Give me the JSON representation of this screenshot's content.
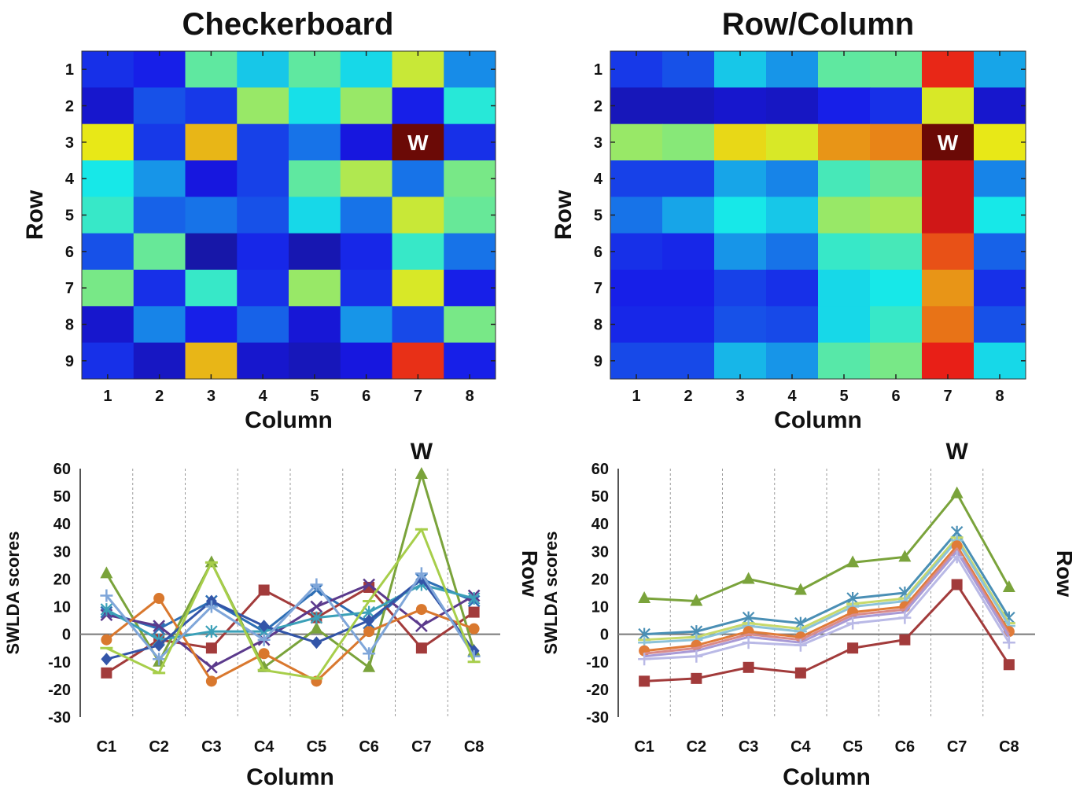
{
  "chart_data": [
    {
      "type": "heatmap",
      "title": "Checkerboard",
      "xlabel": "Column",
      "ylabel": "Row",
      "x_ticks": [
        "1",
        "2",
        "3",
        "4",
        "5",
        "6",
        "7",
        "8"
      ],
      "y_ticks": [
        "1",
        "2",
        "3",
        "4",
        "5",
        "6",
        "7",
        "8",
        "9"
      ],
      "target_label": "W",
      "target_cell": {
        "row": 3,
        "column": 7
      },
      "colormap": "jet",
      "value_range": [
        0,
        1
      ],
      "values": [
        [
          0.14,
          0.12,
          0.45,
          0.32,
          0.45,
          0.34,
          0.58,
          0.25
        ],
        [
          0.08,
          0.18,
          0.15,
          0.52,
          0.35,
          0.52,
          0.12,
          0.38
        ],
        [
          0.62,
          0.15,
          0.68,
          0.16,
          0.22,
          0.1,
          0.98,
          0.14
        ],
        [
          0.36,
          0.26,
          0.1,
          0.16,
          0.45,
          0.55,
          0.22,
          0.48
        ],
        [
          0.4,
          0.2,
          0.22,
          0.18,
          0.34,
          0.22,
          0.58,
          0.46
        ],
        [
          0.18,
          0.46,
          0.04,
          0.13,
          0.05,
          0.13,
          0.4,
          0.22
        ],
        [
          0.48,
          0.14,
          0.4,
          0.14,
          0.52,
          0.14,
          0.6,
          0.12
        ],
        [
          0.08,
          0.24,
          0.12,
          0.2,
          0.09,
          0.26,
          0.17,
          0.48
        ],
        [
          0.14,
          0.07,
          0.68,
          0.08,
          0.06,
          0.1,
          0.84,
          0.12
        ]
      ]
    },
    {
      "type": "heatmap",
      "title": "Row/Column",
      "xlabel": "Column",
      "ylabel": "Row",
      "x_ticks": [
        "1",
        "2",
        "3",
        "4",
        "5",
        "6",
        "7",
        "8"
      ],
      "y_ticks": [
        "1",
        "2",
        "3",
        "4",
        "5",
        "6",
        "7",
        "8",
        "9"
      ],
      "target_label": "W",
      "target_cell": {
        "row": 3,
        "column": 7
      },
      "colormap": "jet",
      "value_range": [
        0,
        1
      ],
      "values": [
        [
          0.15,
          0.18,
          0.32,
          0.26,
          0.45,
          0.46,
          0.85,
          0.28
        ],
        [
          0.06,
          0.06,
          0.08,
          0.07,
          0.12,
          0.14,
          0.6,
          0.08
        ],
        [
          0.52,
          0.5,
          0.64,
          0.6,
          0.72,
          0.74,
          0.98,
          0.62
        ],
        [
          0.16,
          0.16,
          0.28,
          0.24,
          0.42,
          0.46,
          0.9,
          0.24
        ],
        [
          0.22,
          0.28,
          0.36,
          0.32,
          0.52,
          0.54,
          0.9,
          0.36
        ],
        [
          0.14,
          0.13,
          0.26,
          0.22,
          0.4,
          0.42,
          0.8,
          0.2
        ],
        [
          0.12,
          0.12,
          0.16,
          0.14,
          0.34,
          0.36,
          0.72,
          0.14
        ],
        [
          0.13,
          0.13,
          0.18,
          0.17,
          0.34,
          0.4,
          0.76,
          0.18
        ],
        [
          0.17,
          0.17,
          0.3,
          0.26,
          0.44,
          0.48,
          0.86,
          0.34
        ]
      ]
    },
    {
      "type": "line",
      "top_label": "W",
      "xlabel": "Column",
      "ylabel": "SWLDA scores",
      "side_label": "Row",
      "categories": [
        "C1",
        "C2",
        "C3",
        "C4",
        "C5",
        "C6",
        "C7",
        "C8"
      ],
      "ylim": [
        -30,
        60
      ],
      "yticks": [
        -30,
        -20,
        -10,
        0,
        10,
        20,
        30,
        40,
        50,
        60
      ],
      "grid": "vertical dashed separators",
      "series": [
        {
          "color": "#2E6FB5",
          "marker": "x",
          "values": [
            8,
            2,
            12,
            1,
            16,
            4,
            20,
            12
          ]
        },
        {
          "color": "#A23B3B",
          "marker": "square",
          "values": [
            -14,
            -2,
            -5,
            16,
            6,
            17,
            -5,
            8
          ]
        },
        {
          "color": "#7AA33B",
          "marker": "triangle",
          "values": [
            22,
            -10,
            26,
            -12,
            2,
            -12,
            58,
            -6
          ]
        },
        {
          "color": "#5B3A8C",
          "marker": "x",
          "values": [
            7,
            3,
            -12,
            -2,
            10,
            18,
            3,
            14
          ]
        },
        {
          "color": "#3BA0B8",
          "marker": "star",
          "values": [
            9,
            -2,
            1,
            1,
            6,
            8,
            18,
            13
          ]
        },
        {
          "color": "#D9782E",
          "marker": "circle",
          "values": [
            -2,
            13,
            -17,
            -7,
            -17,
            1,
            9,
            2
          ]
        },
        {
          "color": "#3355A8",
          "marker": "diamond",
          "values": [
            -9,
            -4,
            12,
            3,
            -3,
            5,
            20,
            -6
          ]
        },
        {
          "color": "#7FA6D9",
          "marker": "plus",
          "values": [
            14,
            -9,
            10,
            -2,
            18,
            -7,
            22,
            -8
          ]
        },
        {
          "color": "#A7CE4A",
          "marker": "dash",
          "values": [
            -5,
            -14,
            26,
            -13,
            -16,
            12,
            38,
            -10
          ]
        }
      ]
    },
    {
      "type": "line",
      "top_label": "W",
      "xlabel": "Column",
      "ylabel": "SWLDA scores",
      "side_label": "Row",
      "categories": [
        "C1",
        "C2",
        "C3",
        "C4",
        "C5",
        "C6",
        "C7",
        "C8"
      ],
      "ylim": [
        -30,
        60
      ],
      "yticks": [
        -30,
        -20,
        -10,
        0,
        10,
        20,
        30,
        40,
        50,
        60
      ],
      "grid": "vertical dashed separators",
      "series": [
        {
          "color": "#7AA33B",
          "marker": "triangle",
          "values": [
            13,
            12,
            20,
            16,
            26,
            28,
            51,
            17
          ]
        },
        {
          "color": "#4A8FB5",
          "marker": "star",
          "values": [
            0,
            1,
            6,
            4,
            13,
            15,
            37,
            6
          ]
        },
        {
          "color": "#C7D96B",
          "marker": "dash",
          "values": [
            -2,
            -1,
            4,
            2,
            11,
            13,
            35,
            4
          ]
        },
        {
          "color": "#8CC2D9",
          "marker": "plus",
          "values": [
            -3,
            -2,
            3,
            1,
            10,
            12,
            34,
            3
          ]
        },
        {
          "color": "#E07B39",
          "marker": "circle",
          "values": [
            -6,
            -4,
            1,
            -1,
            8,
            10,
            32,
            1
          ]
        },
        {
          "color": "#D98B8B",
          "marker": "none",
          "values": [
            -7,
            -5,
            0,
            -2,
            7,
            9,
            31,
            0
          ]
        },
        {
          "color": "#A99AD6",
          "marker": "none",
          "values": [
            -8,
            -6,
            -1,
            -3,
            6,
            8,
            30,
            -1
          ]
        },
        {
          "color": "#B9B9E6",
          "marker": "plus",
          "values": [
            -9,
            -8,
            -3,
            -4,
            4,
            6,
            28,
            -3
          ]
        },
        {
          "color": "#A23B3B",
          "marker": "square",
          "values": [
            -17,
            -16,
            -12,
            -14,
            -5,
            -2,
            18,
            -11
          ]
        }
      ]
    }
  ]
}
